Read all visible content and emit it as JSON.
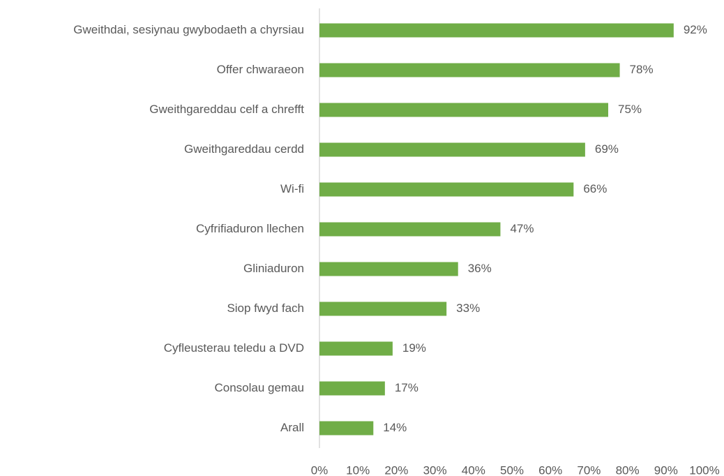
{
  "chart_data": {
    "type": "hbar",
    "categories": [
      "Gweithdai, sesiynau gwybodaeth a chyrsiau",
      "Offer chwaraeon",
      "Gweithgareddau celf a chrefft",
      "Gweithgareddau cerdd",
      "Wi-fi",
      "Cyfrifiaduron llechen",
      "Gliniaduron",
      "Siop fwyd fach",
      "Cyfleusterau teledu a DVD",
      "Consolau gemau",
      "Arall"
    ],
    "values": [
      92,
      78,
      75,
      69,
      66,
      47,
      36,
      33,
      19,
      17,
      14
    ],
    "value_labels": [
      "92%",
      "78%",
      "75%",
      "69%",
      "66%",
      "47%",
      "36%",
      "33%",
      "19%",
      "17%",
      "14%"
    ],
    "color": "#70ad47",
    "xlim": [
      0,
      100
    ],
    "xticks": [
      {
        "value": 0,
        "label": "0%"
      },
      {
        "value": 10,
        "label": "10%"
      },
      {
        "value": 20,
        "label": "20%"
      },
      {
        "value": 30,
        "label": "30%"
      },
      {
        "value": 40,
        "label": "40%"
      },
      {
        "value": 50,
        "label": "50%"
      },
      {
        "value": 60,
        "label": "60%"
      },
      {
        "value": 70,
        "label": "70%"
      },
      {
        "value": 80,
        "label": "80%"
      },
      {
        "value": 90,
        "label": "90%"
      },
      {
        "value": 100,
        "label": "100%"
      }
    ],
    "grid": false
  }
}
